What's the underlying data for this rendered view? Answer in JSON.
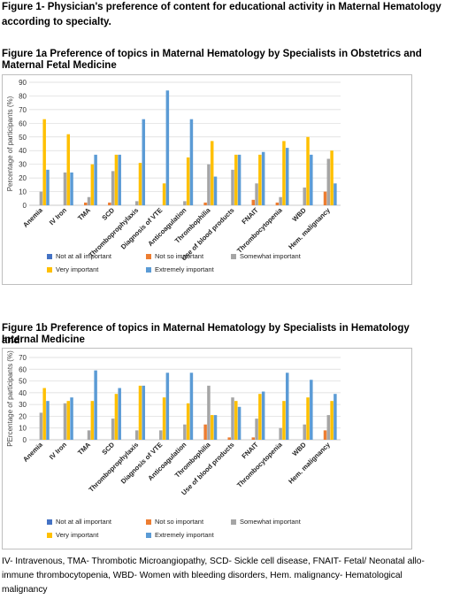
{
  "header": {
    "line1": "Figure 1- Physician's preference of content for educational activity in Maternal Hematology",
    "line2": "according to specialty."
  },
  "footnote": {
    "line1": "IV- Intravenous, TMA- Thrombotic Microangiopathy, SCD- Sickle cell disease, FNAIT- Fetal/ Neonatal allo-",
    "line2": "immune thrombocytopenia, WBD- Women with bleeding disorders, Hem. malignancy- Hematological",
    "line3": "malignancy"
  },
  "colors": {
    "Not at all important": "#4472c4",
    "Not so important": "#ed7d31",
    "Somewhat important": "#a5a5a5",
    "Very important": "#ffc000",
    "Extremely important": "#5b9bd5"
  },
  "chart_data": [
    {
      "type": "bar",
      "title_line1": "Figure 1a Preference of topics in Maternal Hematology by Specialists in Obstetrics and",
      "title_line2": "Maternal Fetal Medicine",
      "ylabel": "Percentage of participants (%)",
      "ylim": [
        0,
        90
      ],
      "yticks": [
        0,
        10,
        20,
        30,
        40,
        50,
        60,
        70,
        80,
        90
      ],
      "grid": true,
      "legend_position": "bottom",
      "categories": [
        "Anemia",
        "IV Iron",
        "TMA",
        "SCD",
        "Thromboprophylaxis",
        "Diagnosis of VTE",
        "Anticoagulation",
        "Thrombophilia",
        "Use of blood products",
        "FNAIT",
        "Thrombocytopenia",
        "WBD",
        "Hem. malignancy"
      ],
      "series": [
        {
          "name": "Not at all important",
          "values": [
            0,
            0,
            0,
            0,
            0,
            0,
            0,
            0,
            0,
            0,
            0,
            0,
            0
          ]
        },
        {
          "name": "Not so important",
          "values": [
            0,
            0,
            2,
            2,
            0,
            0,
            0,
            2,
            0,
            4,
            2,
            0,
            10
          ]
        },
        {
          "name": "Somewhat important",
          "values": [
            10,
            24,
            6,
            25,
            3,
            0,
            3,
            30,
            26,
            16,
            6,
            13,
            34
          ]
        },
        {
          "name": "Very important",
          "values": [
            63,
            52,
            30,
            37,
            31,
            16,
            35,
            47,
            37,
            37,
            47,
            50,
            40
          ]
        },
        {
          "name": "Extremely important",
          "values": [
            26,
            24,
            37,
            37,
            63,
            84,
            63,
            21,
            37,
            39,
            42,
            37,
            16
          ]
        }
      ]
    },
    {
      "type": "bar",
      "title_line1": "Figure 1b Preference of topics in Maternal Hematology by Specialists in Hematology and",
      "title_line2": "Internal Medicine",
      "ylabel": "PErcentage of participants (%)",
      "ylim": [
        0,
        70
      ],
      "yticks": [
        0,
        10,
        20,
        30,
        40,
        50,
        60,
        70
      ],
      "grid": true,
      "legend_position": "bottom",
      "categories": [
        "Anemia",
        "IV Iron",
        "TMA",
        "SCD",
        "Thromboprophylaxis",
        "Diagnosis of VTE",
        "Anticoagulation",
        "Thrombophilia",
        "Use of blood products",
        "FNAIT",
        "Thrombocytopenia",
        "WBD",
        "Hem. malignancy"
      ],
      "series": [
        {
          "name": "Not at all important",
          "values": [
            0,
            0,
            0,
            0,
            0,
            0,
            0,
            0,
            0,
            0,
            0,
            0,
            0
          ]
        },
        {
          "name": "Not so important",
          "values": [
            0,
            0,
            0,
            0,
            0,
            0,
            0,
            13,
            2,
            2,
            0,
            0,
            8
          ]
        },
        {
          "name": "Somewhat important",
          "values": [
            23,
            31,
            8,
            18,
            8,
            8,
            13,
            46,
            36,
            18,
            10,
            13,
            21
          ]
        },
        {
          "name": "Very important",
          "values": [
            44,
            33,
            33,
            39,
            46,
            36,
            31,
            21,
            33,
            39,
            33,
            36,
            33
          ]
        },
        {
          "name": "Extremely important",
          "values": [
            33,
            36,
            59,
            44,
            46,
            57,
            57,
            21,
            28,
            41,
            57,
            51,
            39
          ]
        }
      ]
    }
  ]
}
